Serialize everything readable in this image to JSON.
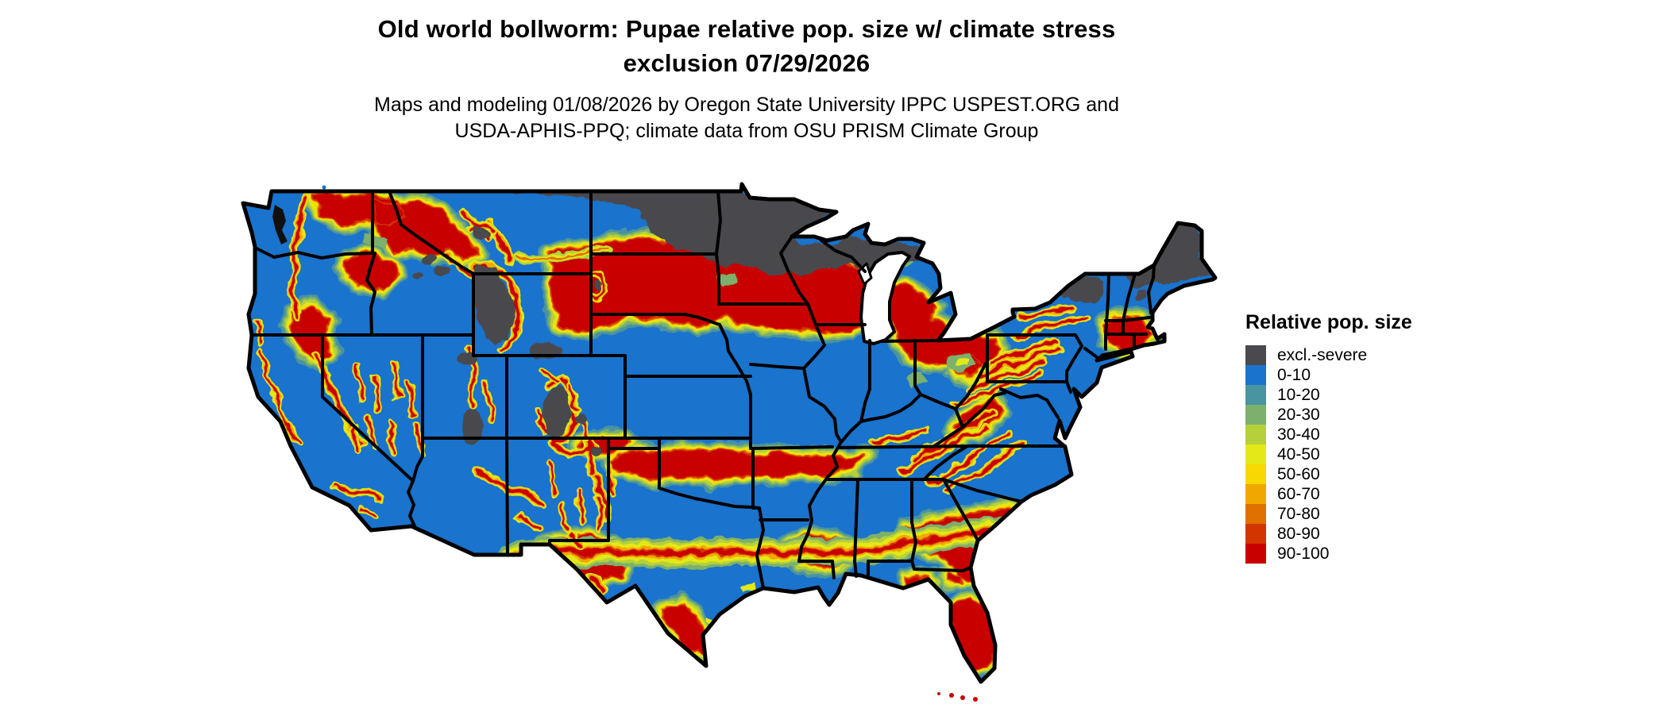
{
  "page": {
    "background": "#ffffff"
  },
  "header": {
    "title_line1": "Old world bollworm: Pupae relative pop. size w/ climate stress",
    "title_line2": "exclusion 07/29/2026",
    "subtitle_line1": "Maps and modeling 01/08/2026 by Oregon State University IPPC USPEST.ORG and",
    "subtitle_line2": "USDA-APHIS-PPQ; climate data from OSU PRISM Climate Group"
  },
  "legend": {
    "title": "Relative pop. size",
    "items": [
      {
        "label": "excl.-severe",
        "color": "#4a4a4e"
      },
      {
        "label": "0-10",
        "color": "#1a73cc"
      },
      {
        "label": "10-20",
        "color": "#4a93a0"
      },
      {
        "label": "20-30",
        "color": "#7cb06c"
      },
      {
        "label": "30-40",
        "color": "#b5d03a"
      },
      {
        "label": "40-50",
        "color": "#e4e818"
      },
      {
        "label": "50-60",
        "color": "#f8d800"
      },
      {
        "label": "60-70",
        "color": "#f0a800"
      },
      {
        "label": "70-80",
        "color": "#e07000"
      },
      {
        "label": "80-90",
        "color": "#d33500"
      },
      {
        "label": "90-100",
        "color": "#c80000"
      }
    ]
  },
  "map_data": {
    "type": "choropleth_raster",
    "region": "Contiguous United States with state boundaries",
    "variable": "Old world bollworm pupae relative population size with climate stress exclusion",
    "date_shown": "07/29/2026",
    "regions_summary": [
      {
        "region": "Northern/eastern North Dakota, northern Minnesota, northern Wisconsin, Michigan Upper Peninsula",
        "class": "excl.-severe"
      },
      {
        "region": "Northern Maine, northern New Hampshire, Adirondacks (NY)",
        "class": "excl.-severe"
      },
      {
        "region": "High Rockies patches: Yellowstone/Wind River WY, Colorado Rockies, Utah plateaus, central Idaho/Montana peaks",
        "class": "excl.-severe"
      },
      {
        "region": "Central plains band: eastern Montana, South Dakota, southern Minnesota, northern Iowa, southern Wisconsin, northern Illinois, southern Michigan, northern Ohio",
        "class": "70-100 with 30-60 fringes"
      },
      {
        "region": "Gulf band: central Texas through Louisiana, southern Mississippi/Alabama, central Georgia into South Carolina",
        "class": "70-100 with 30-60 fringes"
      },
      {
        "region": "Ozarks, eastern Oklahoma, southern Missouri, northern Arkansas",
        "class": "60-100"
      },
      {
        "region": "Appalachians: eastern Kentucky, West Virginia, western Virginia, Pennsylvania ridges, southern New York, central Massachusetts/Connecticut",
        "class": "60-100 streaks"
      },
      {
        "region": "Central Florida and lower Rio Grande valley of Texas",
        "class": "80-100"
      },
      {
        "region": "Western mountain ranges (Cascades, Sierra Nevada, northern Rockies, Wasatch, Mogollon Rim, New Mexico ranges)",
        "class": "60-100 mottled over 0-10 basins"
      },
      {
        "region": "Lowlands elsewhere: Pacific valleys, Great Basin, Kansas/eastern Colorado plains, east Texas, lower Midwest, Atlantic coastal plain",
        "class": "0-10"
      }
    ]
  }
}
